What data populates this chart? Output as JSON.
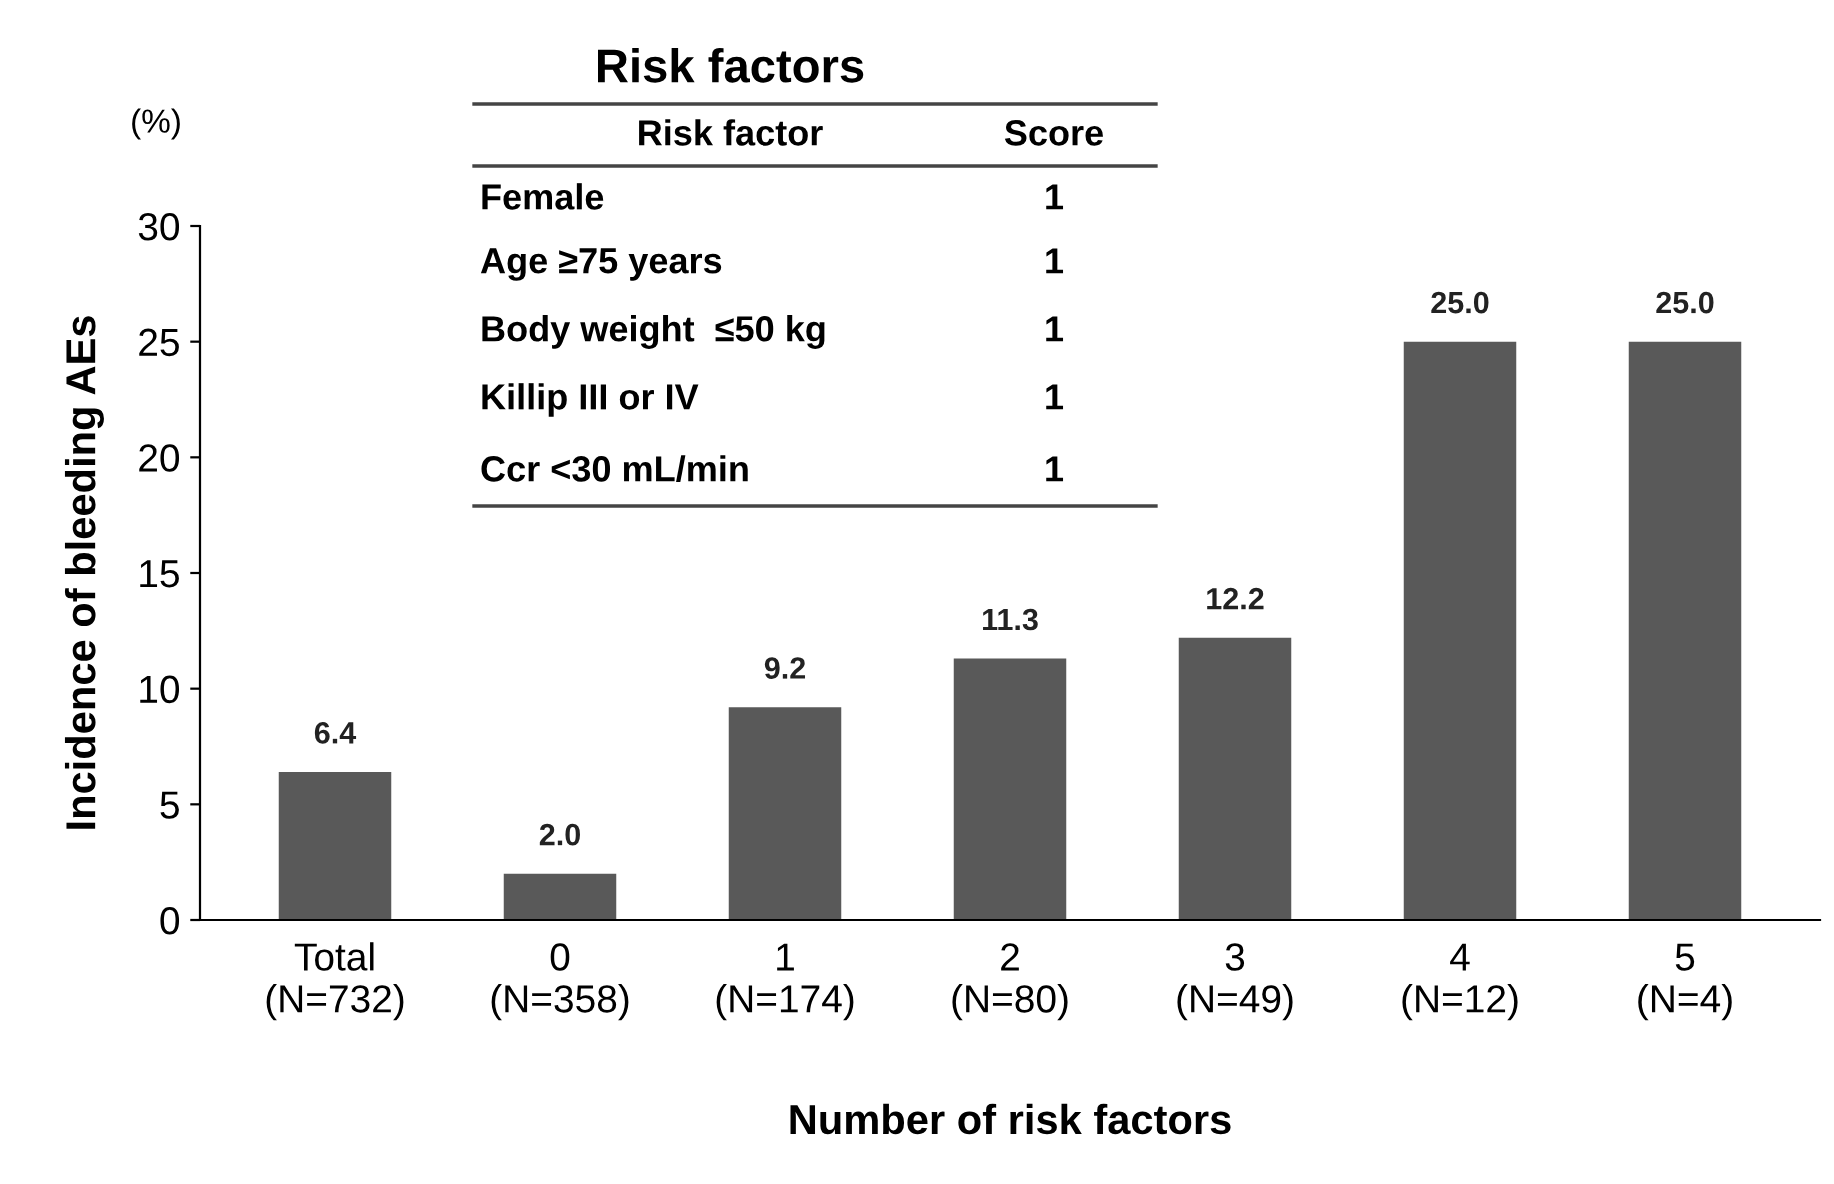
{
  "chart_data": {
    "type": "bar",
    "categories": [
      "Total\n(N=732)",
      "0\n(N=358)",
      "1\n(N=174)",
      "2\n(N=80)",
      "3\n(N=49)",
      "4\n(N=12)",
      "5\n(N=4)"
    ],
    "values": [
      6.4,
      2.0,
      9.2,
      11.3,
      12.2,
      25.0,
      25.0
    ],
    "value_labels": [
      "6.4",
      "2.0",
      "9.2",
      "11.3",
      "12.2",
      "25.0",
      "25.0"
    ],
    "color": "#595959",
    "xlabel": "Number of risk factors",
    "ylabel": "Incidence of bleeding AEs",
    "ylim": [
      0,
      30
    ],
    "yticks": [
      0,
      5,
      10,
      15,
      20,
      25,
      30
    ],
    "grid": false,
    "legend": false,
    "annotations": [
      "(%)",
      "Risk factors",
      "Risk factor",
      "Score",
      "Female",
      "1",
      "Age ≥75 years",
      "1",
      "Body weight  ≤50 kg",
      "1",
      "Killip III or IV",
      "1",
      "Ccr <30 mL/min",
      "1"
    ]
  }
}
